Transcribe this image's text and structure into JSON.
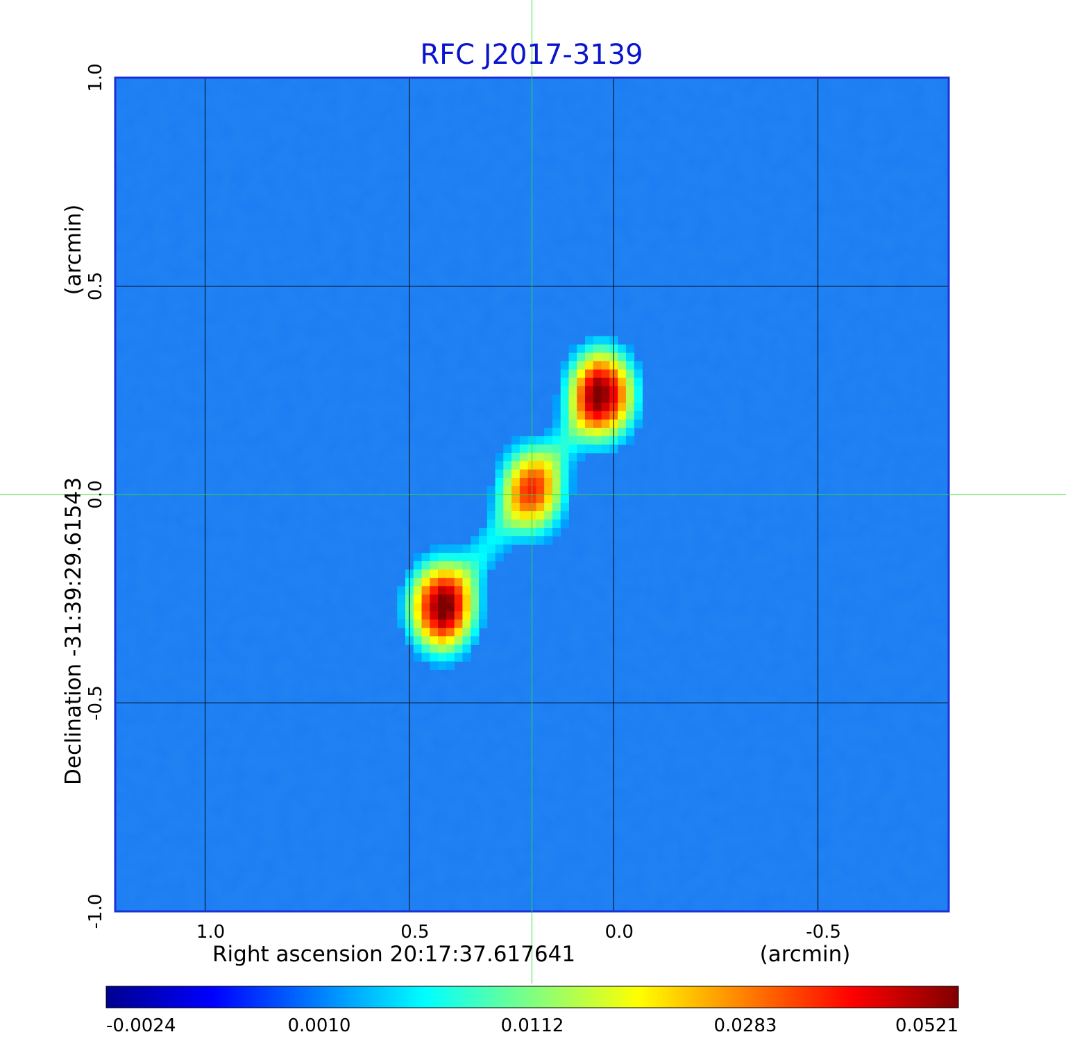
{
  "chart_data": {
    "type": "heatmap",
    "title": "RFC J2017-3139",
    "xlabel": "Right ascension  20:17:37.617641",
    "xunit": "(arcmin)",
    "ylabel": "Declination  -31:39:29.61543",
    "yunit": "(arcmin)",
    "xlim": [
      1.22,
      -0.82
    ],
    "ylim": [
      -1.0,
      1.0
    ],
    "x_ticks": [
      1.0,
      0.5,
      0.0,
      -0.5
    ],
    "x_tick_labels": [
      "1.0",
      "0.5",
      "0.0",
      "-0.5"
    ],
    "y_ticks": [
      -1.0,
      -0.5,
      0.0,
      0.5,
      1.0
    ],
    "y_tick_labels": [
      "-1.0",
      "-0.5",
      "0.0",
      "0.5",
      "1.0"
    ],
    "grid": true,
    "crosshair": {
      "x": 0.2,
      "y": 0.0,
      "color": "#33dd33"
    },
    "colormap": "jet",
    "colorbar": {
      "tick_labels": [
        "-0.0024",
        "0.0010",
        "0.0112",
        "0.0283",
        "0.0521"
      ],
      "values": [
        -0.0024,
        0.001,
        0.0112,
        0.0283,
        0.0521
      ]
    },
    "components": [
      {
        "x": 0.03,
        "y": 0.24,
        "peak": 0.0521
      },
      {
        "x": 0.2,
        "y": 0.01,
        "peak": 0.032
      },
      {
        "x": 0.42,
        "y": -0.27,
        "peak": 0.052
      }
    ],
    "background_level": -0.0005
  },
  "colors": {
    "title": "#0a14cc",
    "frame": "#1b30d8",
    "grid": "#000000",
    "crosshair": "#33dd33",
    "background_map": "#1a7cf2"
  }
}
